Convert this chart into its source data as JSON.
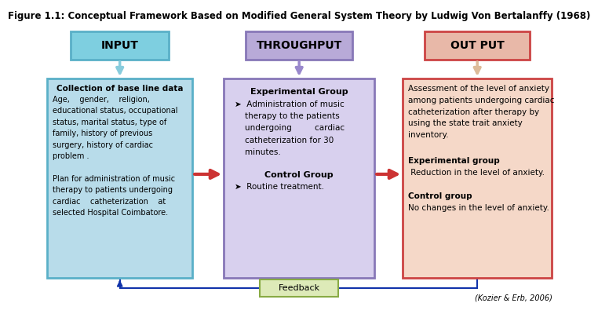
{
  "title": "Figure 1.1: Conceptual Framework Based on Modified General System Theory by Ludwig Von Bertalanffy (1968)",
  "title_fontsize": 8.5,
  "citation": "(Kozier & Erb, 2006)",
  "box1_header": "INPUT",
  "box1_header_bg": "#7ecfe0",
  "box1_header_border": "#5ab0c8",
  "box1_body_bg": "#b8dcea",
  "box1_body_border": "#5ab0c8",
  "box1_bold_line": "Collection of base line data",
  "box2_header": "THROUGHPUT",
  "box2_header_bg": "#b8aad8",
  "box2_header_border": "#8878b8",
  "box2_body_bg": "#d8d0ee",
  "box2_body_border": "#8878b8",
  "box2_content_bold1": "Experimental Group",
  "box2_content_bold2": "Control Group",
  "box3_header": "OUT PUT",
  "box3_header_bg": "#e8b8a8",
  "box3_header_border": "#cc4444",
  "box3_body_bg": "#f5d8c8",
  "box3_body_border": "#cc4444",
  "box3_bold1": "Experimental group",
  "box3_text1": "Reduction in the level of anxiety.",
  "box3_bold2": "Control group",
  "box3_text2": "No changes in the level of anxiety.",
  "feedback_text": "Feedback",
  "feedback_bg": "#ddeab8",
  "feedback_border": "#88aa44",
  "arrow_color_down1": "#88ccdd",
  "arrow_color_down2": "#9988cc",
  "arrow_color_down3": "#ddbb99",
  "arrow_color_horiz": "#cc3333",
  "arrow_color_feedback": "#1133aa"
}
